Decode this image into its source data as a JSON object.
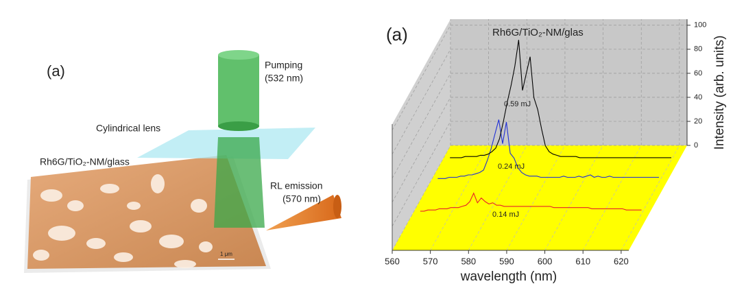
{
  "diagram": {
    "panel_label": "(a)",
    "pumping": [
      "Pumping",
      "(532 nm)"
    ],
    "lens": "Cylindrical lens",
    "sample": "Rh6G/TiO₂-NM/glass",
    "emission": [
      "RL emission",
      "(570 nm)"
    ],
    "scale_bar": "1 μm"
  },
  "chart_data": {
    "type": "waterfall",
    "panel_label": "(a)",
    "title": "Rh6G/TiO₂-NM/glas",
    "x_label": "wavelength (nm)",
    "y_label": "Intensity (arb. units)",
    "x": [
      562,
      563,
      564,
      565,
      566,
      567,
      568,
      569,
      570,
      571,
      572,
      573,
      574,
      575,
      576,
      577,
      578,
      579,
      580,
      581,
      582,
      583,
      584,
      585,
      586,
      587,
      588,
      589,
      590,
      591,
      592,
      593,
      594,
      595,
      596,
      597,
      598,
      599,
      600,
      601,
      602,
      603,
      604,
      605,
      606,
      607,
      608,
      609,
      610,
      611,
      612,
      613,
      614,
      615,
      616,
      617,
      618,
      619,
      620
    ],
    "series": [
      {
        "name": "0.14 mJ",
        "color": "#e8202a",
        "values": [
          2,
          2,
          3,
          3,
          3,
          4,
          4,
          4,
          5,
          5,
          5,
          6,
          7,
          10,
          17,
          9,
          13,
          10,
          8,
          9,
          7,
          7,
          6,
          6,
          6,
          6,
          6,
          6,
          6,
          6,
          6,
          6,
          6,
          6,
          6,
          5,
          5,
          5,
          5,
          5,
          5,
          5,
          5,
          5,
          5,
          4,
          4,
          4,
          4,
          4,
          4,
          4,
          4,
          4,
          3,
          3,
          3,
          3,
          3
        ]
      },
      {
        "name": "0.24 mJ",
        "color": "#1f2fd6",
        "values": [
          3,
          3,
          3,
          4,
          4,
          4,
          5,
          5,
          6,
          6,
          7,
          8,
          10,
          18,
          28,
          40,
          52,
          32,
          50,
          24,
          20,
          12,
          8,
          6,
          5,
          5,
          5,
          4,
          4,
          4,
          4,
          4,
          4,
          5,
          4,
          4,
          4,
          5,
          4,
          5,
          6,
          4,
          5,
          4,
          4,
          5,
          4,
          4,
          4,
          4,
          4,
          4,
          4,
          4,
          4,
          4,
          4,
          4,
          4
        ]
      },
      {
        "name": "0.59 mJ",
        "color": "#000000",
        "values": [
          2,
          2,
          2,
          2,
          3,
          3,
          3,
          3,
          4,
          4,
          5,
          7,
          10,
          18,
          32,
          48,
          62,
          78,
          100,
          58,
          72,
          86,
          52,
          42,
          26,
          12,
          7,
          5,
          4,
          3,
          3,
          3,
          3,
          3,
          2,
          2,
          2,
          2,
          2,
          2,
          2,
          2,
          2,
          2,
          2,
          2,
          2,
          2,
          2,
          2,
          2,
          2,
          2,
          2,
          2,
          2,
          2,
          2,
          2
        ]
      }
    ],
    "xlim": [
      560,
      622
    ],
    "xticks": [
      560,
      570,
      580,
      590,
      600,
      610,
      620
    ],
    "ylim": [
      0,
      105
    ],
    "yticks": [
      0,
      20,
      40,
      60,
      80,
      100
    ],
    "grid": true,
    "floor_color": "#ffff00",
    "wall_color": "#c8c8c8"
  }
}
